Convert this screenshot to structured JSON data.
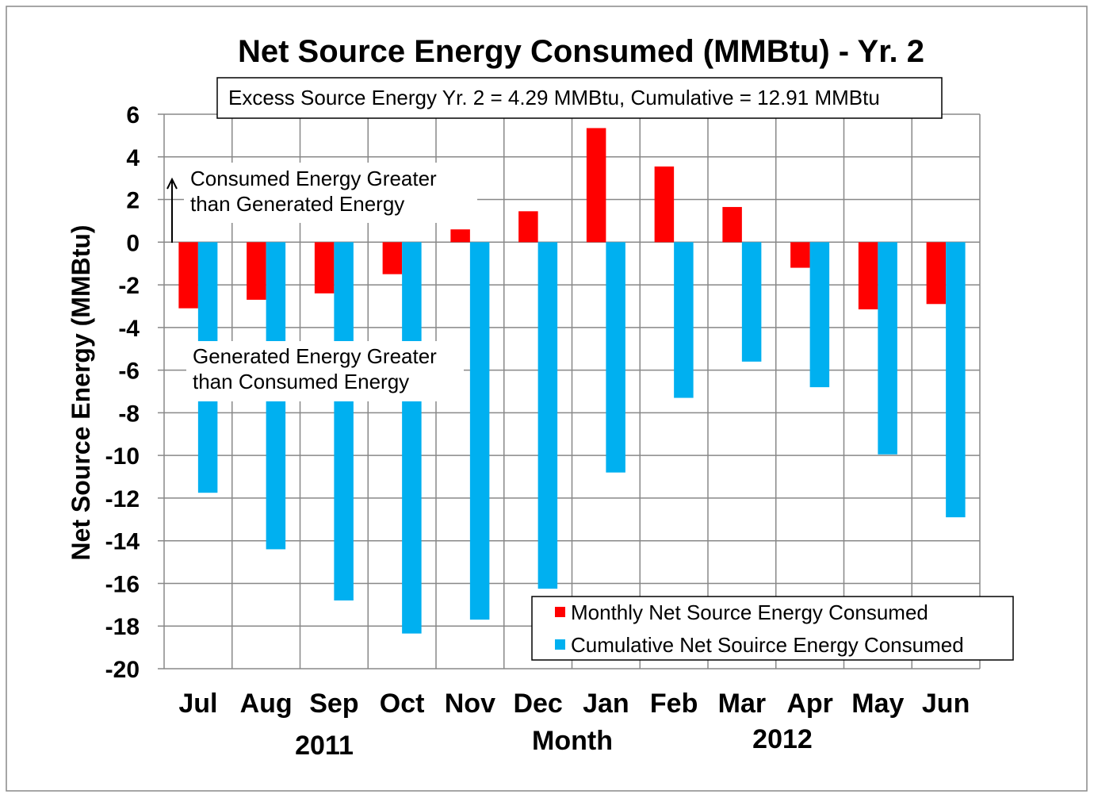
{
  "chart_data": {
    "type": "bar",
    "title": "Net Source Energy Consumed (MMBtu) - Yr. 2",
    "subtitle": "Excess Source Energy Yr. 2 = 4.29 MMBtu,  Cumulative = 12.91 MMBtu",
    "xlabel": "Month",
    "ylabel": "Net Source Energy (MMBtu)",
    "year_labels": [
      "2011",
      "2012"
    ],
    "categories": [
      "Jul",
      "Aug",
      "Sep",
      "Oct",
      "Nov",
      "Dec",
      "Jan",
      "Feb",
      "Mar",
      "Apr",
      "May",
      "Jun"
    ],
    "ylim": [
      -20,
      6
    ],
    "yticks": [
      6,
      4,
      2,
      0,
      -2,
      -4,
      -6,
      -8,
      -10,
      -12,
      -14,
      -16,
      -18,
      -20
    ],
    "grid": true,
    "legend_position": "bottom-right",
    "annotations": [
      "Consumed Energy Greater",
      "than Generated Energy",
      "Generated Energy Greater",
      "than Consumed Energy"
    ],
    "series": [
      {
        "name": "Monthly Net Source Energy Consumed",
        "color": "#ff0000",
        "values": [
          -3.1,
          -2.7,
          -2.4,
          -1.5,
          0.6,
          1.45,
          5.35,
          3.55,
          1.65,
          -1.2,
          -3.15,
          -2.9
        ]
      },
      {
        "name": "Cumulative Net Souirce Energy Consumed",
        "color": "#00b0f0",
        "values": [
          -11.75,
          -14.4,
          -16.8,
          -18.35,
          -17.7,
          -16.25,
          -10.8,
          -7.3,
          -5.6,
          -6.8,
          -9.95,
          -12.9
        ]
      }
    ]
  }
}
